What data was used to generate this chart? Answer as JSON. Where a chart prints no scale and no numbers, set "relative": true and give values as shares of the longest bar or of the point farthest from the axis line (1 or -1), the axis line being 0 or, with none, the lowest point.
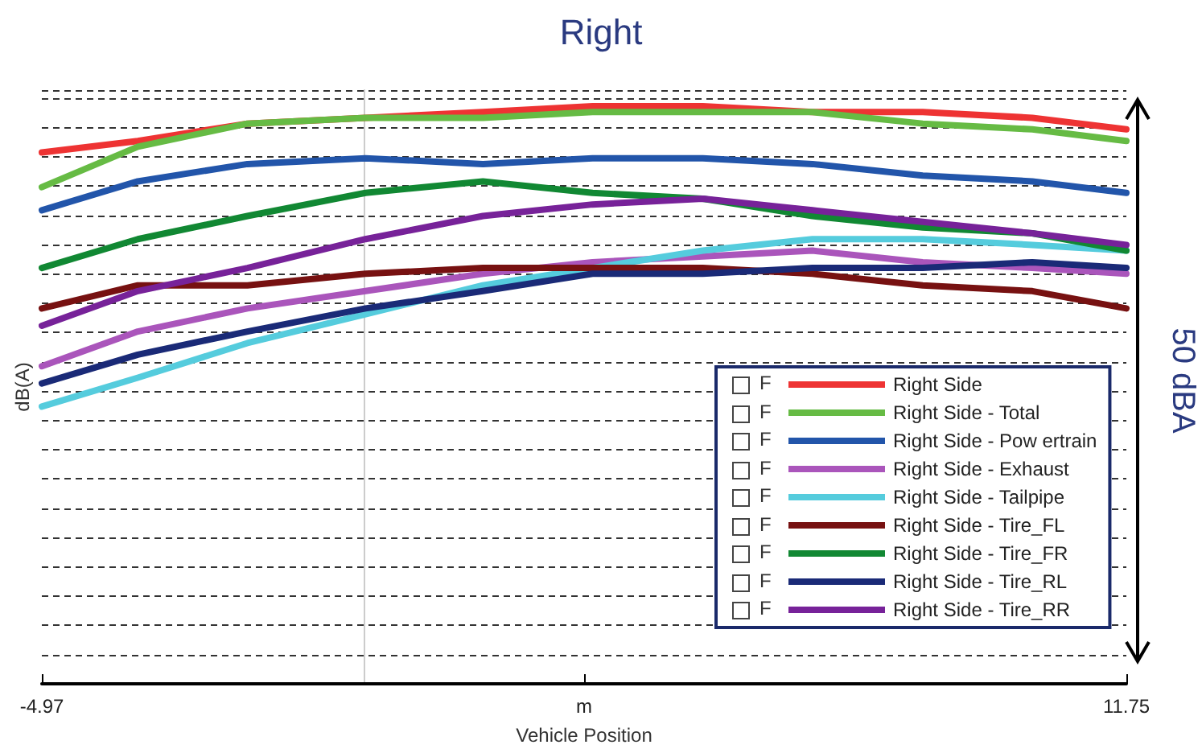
{
  "chart_data": {
    "type": "line",
    "title": "Right",
    "xlabel": "Vehicle Position",
    "ylabel": "dB(A)",
    "relative": true,
    "grid": "y",
    "legend": "bottom right",
    "marker": "none",
    "line_style": "solid",
    "annotations": [
      "50 dBA",
      "F"
    ],
    "xlim": [
      -4.97,
      11.75
    ],
    "xticks": [
      -4.97,
      {
        "value": 3.39,
        "label": "m"
      },
      11.75
    ],
    "x": [
      -4.97,
      -3.49,
      -1.8,
      0.02,
      1.83,
      3.52,
      5.22,
      6.91,
      8.61,
      10.3,
      11.75
    ],
    "series": [
      {
        "name": "Right Side",
        "color": "#ee3333",
        "values": [
          0.92,
          0.94,
          0.97,
          0.98,
          0.99,
          1.0,
          1.0,
          0.99,
          0.99,
          0.98,
          0.96
        ]
      },
      {
        "name": "Right Side - Total",
        "color": "#66bb44",
        "values": [
          0.86,
          0.93,
          0.97,
          0.98,
          0.98,
          0.99,
          0.99,
          0.99,
          0.97,
          0.96,
          0.94
        ]
      },
      {
        "name": "Right Side - Pow ertrain",
        "color": "#2255aa",
        "values": [
          0.82,
          0.87,
          0.9,
          0.91,
          0.9,
          0.91,
          0.91,
          0.9,
          0.88,
          0.87,
          0.85
        ]
      },
      {
        "name": "Right Side - Exhaust",
        "color": "#aa55bb",
        "values": [
          0.55,
          0.61,
          0.65,
          0.68,
          0.71,
          0.73,
          0.74,
          0.75,
          0.73,
          0.72,
          0.71
        ]
      },
      {
        "name": "Right Side - Tailpipe",
        "color": "#55ccdd",
        "values": [
          0.48,
          0.53,
          0.59,
          0.64,
          0.69,
          0.72,
          0.75,
          0.77,
          0.77,
          0.76,
          0.75
        ]
      },
      {
        "name": "Right Side - Tire_FL",
        "color": "#771111",
        "values": [
          0.65,
          0.69,
          0.69,
          0.71,
          0.72,
          0.72,
          0.72,
          0.71,
          0.69,
          0.68,
          0.65
        ]
      },
      {
        "name": "Right Side - Tire_FR",
        "color": "#118833",
        "values": [
          0.72,
          0.77,
          0.81,
          0.85,
          0.87,
          0.85,
          0.84,
          0.81,
          0.79,
          0.78,
          0.75
        ]
      },
      {
        "name": "Right Side - Tire_RL",
        "color": "#1a2a77",
        "values": [
          0.52,
          0.57,
          0.61,
          0.65,
          0.68,
          0.71,
          0.71,
          0.72,
          0.72,
          0.73,
          0.72
        ]
      },
      {
        "name": "Right Side - Tire_RR",
        "color": "#772299",
        "values": [
          0.62,
          0.68,
          0.72,
          0.77,
          0.81,
          0.83,
          0.84,
          0.82,
          0.8,
          0.78,
          0.76
        ]
      }
    ]
  }
}
